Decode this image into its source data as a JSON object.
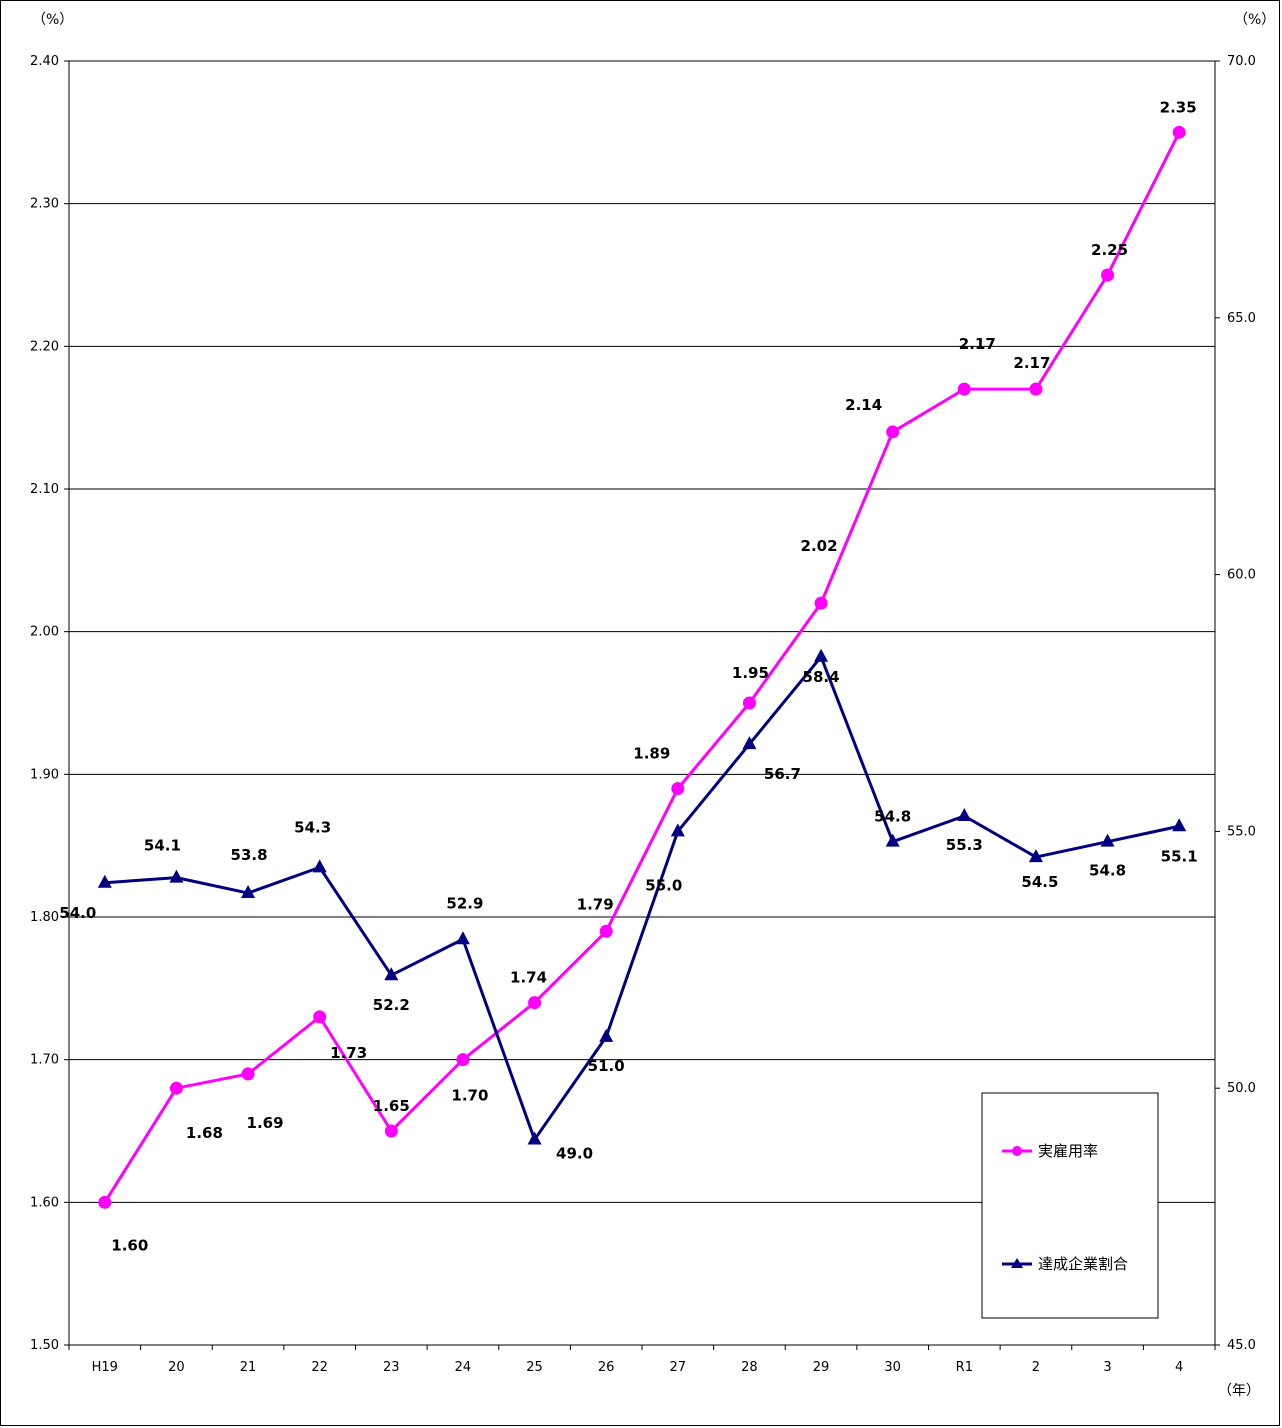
{
  "chart_data": {
    "type": "line",
    "categories": [
      "H19",
      "20",
      "21",
      "22",
      "23",
      "24",
      "25",
      "26",
      "27",
      "28",
      "29",
      "30",
      "R1",
      "2",
      "3",
      "4"
    ],
    "left_axis": {
      "unit": "（%）",
      "ylim": [
        1.5,
        2.4
      ],
      "ticks": [
        "1.50",
        "1.60",
        "1.70",
        "1.80",
        "1.90",
        "2.00",
        "2.10",
        "2.20",
        "2.30",
        "2.40"
      ]
    },
    "right_axis": {
      "unit": "（%）",
      "ylim": [
        45.0,
        70.0
      ],
      "ticks": [
        "45.0",
        "50.0",
        "55.0",
        "60.0",
        "65.0",
        "70.0"
      ]
    },
    "x_unit": "（年）",
    "grid": true,
    "legend_position": "bottom-right",
    "series": [
      {
        "name": "実雇用率",
        "axis": "left",
        "color": "#ff00ff",
        "marker": "circle",
        "values": [
          1.6,
          1.68,
          1.69,
          1.73,
          1.65,
          1.7,
          1.74,
          1.79,
          1.89,
          1.95,
          2.02,
          2.14,
          2.17,
          2.17,
          2.25,
          2.35
        ],
        "labels": [
          "1.60",
          "1.68",
          "1.69",
          "1.73",
          "1.65",
          "1.70",
          "1.74",
          "1.79",
          "1.89",
          "1.95",
          "2.02",
          "2.14",
          "2.17",
          "2.17",
          "2.25",
          "2.35"
        ]
      },
      {
        "name": "達成企業割合",
        "axis": "right",
        "color": "#000080",
        "marker": "triangle",
        "values": [
          54.0,
          54.1,
          53.8,
          54.3,
          52.2,
          52.9,
          49.0,
          51.0,
          55.0,
          56.7,
          58.4,
          54.8,
          55.3,
          54.5,
          54.8,
          55.1
        ],
        "labels": [
          "54.0",
          "54.1",
          "53.8",
          "54.3",
          "52.2",
          "52.9",
          "49.0",
          "51.0",
          "55.0",
          "56.7",
          "58.4",
          "54.8",
          "55.3",
          "54.5",
          "54.8",
          "55.1"
        ]
      }
    ]
  }
}
